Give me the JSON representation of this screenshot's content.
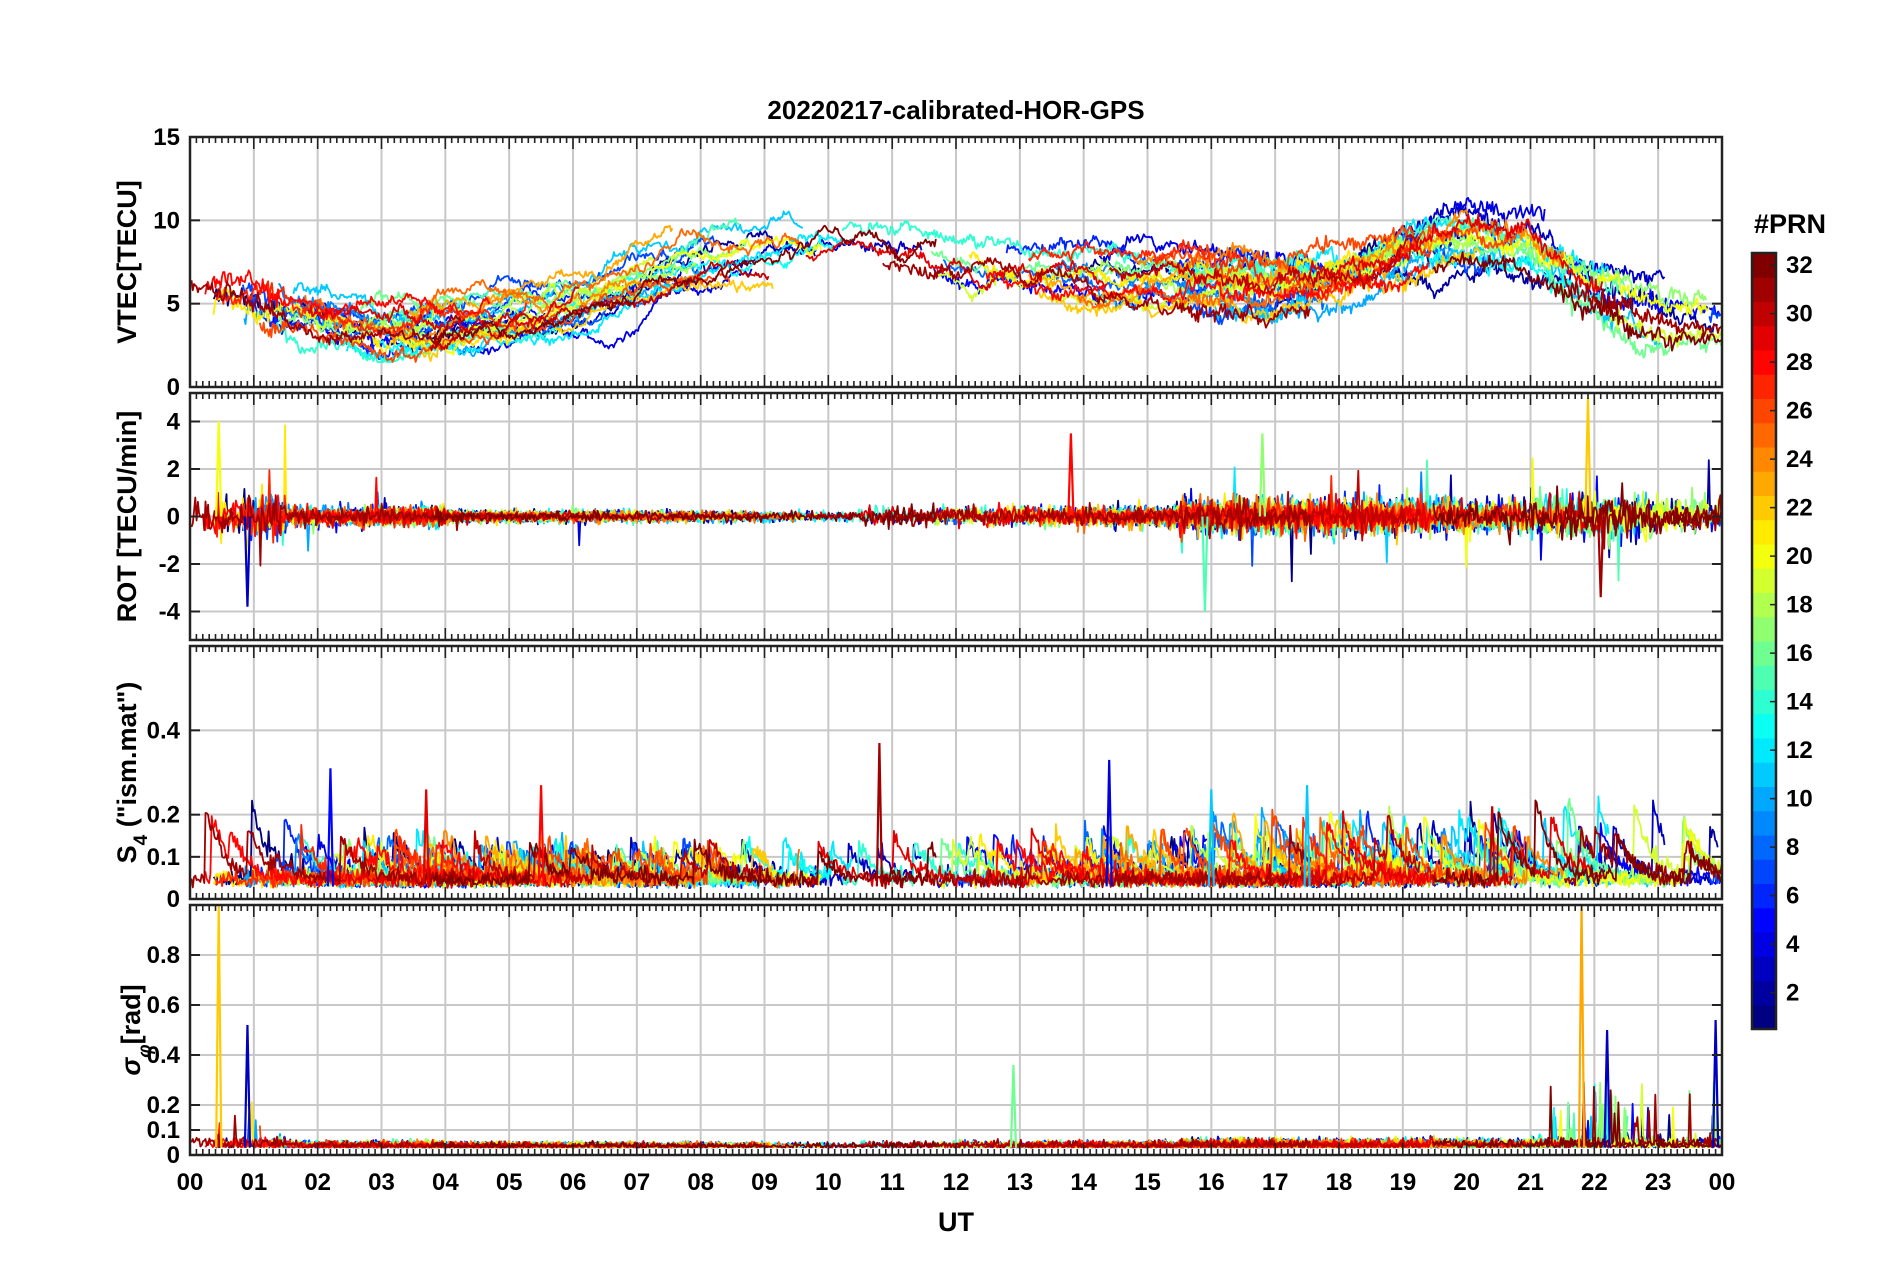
{
  "chart_data": {
    "type": "line",
    "title": "20220217-calibrated-HOR-GPS",
    "xlabel": "UT",
    "x_range_hours": [
      0,
      24
    ],
    "x_tick_labels": [
      "00",
      "01",
      "02",
      "03",
      "04",
      "05",
      "06",
      "07",
      "08",
      "09",
      "10",
      "11",
      "12",
      "13",
      "14",
      "15",
      "16",
      "17",
      "18",
      "19",
      "20",
      "21",
      "22",
      "23",
      "00"
    ],
    "grid": true,
    "colormap": "jet",
    "colorbar": {
      "title": "#PRN",
      "range": [
        1,
        32
      ],
      "ticks": [
        "2",
        "4",
        "6",
        "8",
        "10",
        "12",
        "14",
        "16",
        "18",
        "20",
        "22",
        "24",
        "26",
        "28",
        "30",
        "32"
      ]
    },
    "panels": [
      {
        "ylabel": "VTEC[TECU]",
        "ylim": [
          0,
          15
        ],
        "yticks": [
          "0",
          "5",
          "10",
          "15"
        ],
        "series_description": "Vertical TEC per PRN, typically 2-12 TECU; lows ~2-5 near 02-05 UT, peaks ~10-12 near 10-11 UT and 19-21 UT"
      },
      {
        "ylabel": "ROT [TECU/min]",
        "ylim": [
          -5.2,
          5.2
        ],
        "yticks": [
          "-4",
          "-2",
          "0",
          "2",
          "4"
        ],
        "series_description": "Rate of TEC, mostly within ±1 TECU/min; spikes to ~±3.5 near 00-01, 13, 16-17 and 21-22 UT; max ~5 near 21.9 UT"
      },
      {
        "ylabel_main": "S",
        "ylabel_sub": "4",
        "ylabel_rest": " (\"ism.mat\")",
        "ylim": [
          0,
          0.6
        ],
        "yticks": [
          "0",
          "0.1",
          "0.2",
          "0.4"
        ],
        "series_description": "S4 amplitude scintillation index, background ~0.02-0.08; bursts to 0.2-0.37 at 02, 03.5, 05.5, 10.8, 14.5, 16, 17.5, 20.5 UT"
      },
      {
        "ylabel_main": "σ",
        "ylabel_sub": "φ",
        "ylabel_rest": "[rad]",
        "ylim": [
          0,
          1.0
        ],
        "yticks": [
          "0",
          "0.1",
          "0.2",
          "0.4",
          "0.6",
          "0.8"
        ],
        "series_description": "Phase scintillation, mostly ~0.03-0.05 rad; spikes to ~1.0 at 00.45 and 21.8 UT, ~0.5 at 00.9 and 23.9 UT"
      }
    ],
    "prn_count": 32
  }
}
